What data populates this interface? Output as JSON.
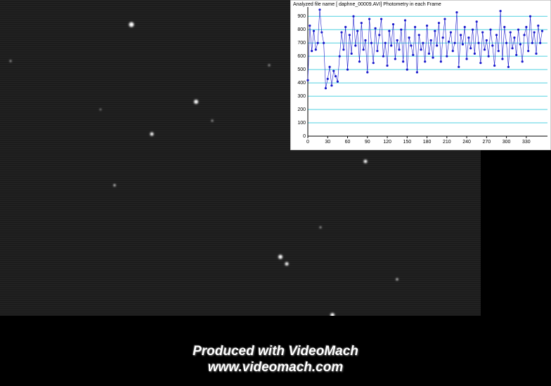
{
  "chart_data": {
    "type": "line",
    "title": "Analyzed file name [ daphne_00009.AVI]   Photometry in each Frame",
    "x": [
      0,
      3,
      6,
      9,
      12,
      15,
      18,
      21,
      24,
      27,
      30,
      33,
      36,
      39,
      42,
      45,
      48,
      51,
      54,
      57,
      60,
      63,
      66,
      69,
      72,
      75,
      78,
      81,
      84,
      87,
      90,
      93,
      96,
      99,
      102,
      105,
      108,
      111,
      114,
      117,
      120,
      123,
      126,
      129,
      132,
      135,
      138,
      141,
      144,
      147,
      150,
      153,
      156,
      159,
      162,
      165,
      168,
      171,
      174,
      177,
      180,
      183,
      186,
      189,
      192,
      195,
      198,
      201,
      204,
      207,
      210,
      213,
      216,
      219,
      222,
      225,
      228,
      231,
      234,
      237,
      240,
      243,
      246,
      249,
      252,
      255,
      258,
      261,
      264,
      267,
      270,
      273,
      276,
      279,
      282,
      285,
      288,
      291,
      294,
      297,
      300,
      303,
      306,
      309,
      312,
      315,
      318,
      321,
      324,
      327,
      330,
      333,
      336,
      339,
      342,
      345,
      348,
      351,
      354
    ],
    "series": [
      {
        "color": "#1a1acc",
        "values": [
          420,
          830,
          640,
          790,
          650,
          700,
          950,
          780,
          700,
          360,
          430,
          520,
          380,
          490,
          450,
          410,
          600,
          780,
          650,
          820,
          500,
          760,
          620,
          900,
          680,
          790,
          560,
          850,
          650,
          720,
          480,
          880,
          700,
          550,
          810,
          640,
          760,
          880,
          600,
          700,
          530,
          790,
          680,
          840,
          580,
          720,
          650,
          800,
          560,
          870,
          500,
          740,
          680,
          610,
          820,
          480,
          760,
          650,
          700,
          560,
          830,
          620,
          720,
          590,
          790,
          680,
          850,
          560,
          740,
          880,
          600,
          710,
          780,
          640,
          700,
          930,
          520,
          760,
          690,
          820,
          580,
          740,
          660,
          800,
          620,
          860,
          700,
          550,
          780,
          650,
          720,
          600,
          800,
          680,
          530,
          760,
          640,
          940,
          580,
          820,
          700,
          520,
          780,
          660,
          740,
          610,
          800,
          690,
          560,
          760,
          820,
          640,
          900,
          700,
          780,
          620,
          830,
          700,
          790
        ]
      }
    ],
    "xlim": [
      0,
      362
    ],
    "xticks": [
      0,
      30,
      60,
      90,
      120,
      150,
      180,
      210,
      240,
      270,
      300,
      330
    ],
    "ylim": [
      0,
      970
    ],
    "yticks": [
      0,
      100,
      200,
      300,
      400,
      500,
      600,
      700,
      800,
      900
    ],
    "grid": true,
    "grid_color": "#4fd0e0"
  },
  "watermark": {
    "line1": "Produced with VideoMach",
    "line2": "www.videomach.com"
  }
}
